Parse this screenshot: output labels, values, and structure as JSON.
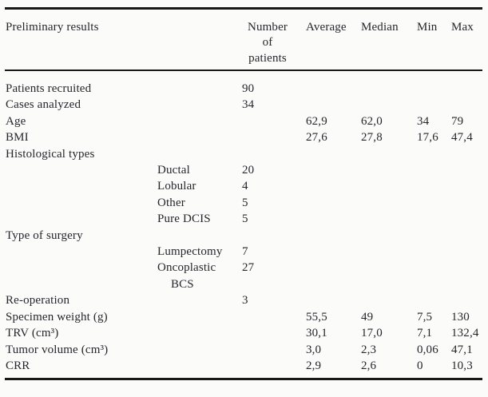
{
  "colors": {
    "text": "#26262e",
    "rule": "#17171c",
    "background": "#fbfbfa"
  },
  "header": {
    "col_label": "Preliminary results",
    "col_patients": "Number of patients",
    "col_average": "Average",
    "col_median": "Median",
    "col_min": "Min",
    "col_max": "Max"
  },
  "rows": [
    {
      "label": "Patients recruited",
      "patients": "90"
    },
    {
      "label": "Cases analyzed",
      "patients": "34"
    },
    {
      "label": "Age",
      "average": "62,9",
      "median": "62,0",
      "min": "34",
      "max": "79"
    },
    {
      "label": "BMI",
      "average": "27,6",
      "median": "27,8",
      "min": "17,6",
      "max": "47,4"
    },
    {
      "label": "Histological types"
    },
    {
      "sub": "Ductal",
      "patients": "20"
    },
    {
      "sub": "Lobular",
      "patients": "4"
    },
    {
      "sub": "Other",
      "patients": "5"
    },
    {
      "sub": "Pure DCIS",
      "patients": "5"
    },
    {
      "label": "Type of surgery"
    },
    {
      "sub": "Lumpectomy",
      "patients": "7"
    },
    {
      "sub": "Oncoplastic",
      "sub2": "BCS",
      "patients": "27"
    },
    {
      "label": "Re-operation",
      "patients": "3"
    },
    {
      "label": "Specimen weight (g)",
      "average": "55,5",
      "median": "49",
      "min": "7,5",
      "max": "130"
    },
    {
      "label": "TRV (cm³)",
      "average": "30,1",
      "median": "17,0",
      "min": "7,1",
      "max": "132,4"
    },
    {
      "label": "Tumor volume (cm³)",
      "average": "3,0",
      "median": "2,3",
      "min": "0,06",
      "max": "47,1"
    },
    {
      "label": "CRR",
      "average": "2,9",
      "median": "2,6",
      "min": "0",
      "max": "10,3"
    }
  ]
}
